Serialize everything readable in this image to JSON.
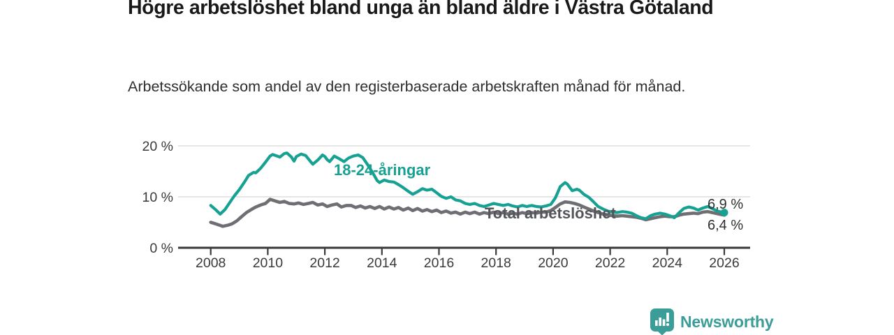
{
  "header": {
    "title": "Högre arbetslöshet bland unga än bland äldre i Västra Götaland",
    "subtitle": "Arbetssökande som andel av den registerbaserade arbetskraften månad för månad."
  },
  "footer": {
    "brand": "Newsworthy",
    "logo_icon": "bar-chart-exclamation-speech-bubble-icon",
    "brand_color": "#3b9d98"
  },
  "colors": {
    "youth_line": "#17a192",
    "total_line": "#6e6f73",
    "total_label": "#53555a",
    "axis": "#3a3a3a",
    "axis_text": "#3a3a3a",
    "gridline": "#d8d8d8",
    "end_label_text": "#2e2e2e"
  },
  "chart_data": {
    "type": "line",
    "title": "Högre arbetslöshet bland unga än bland äldre i Västra Götaland",
    "subtitle": "Arbetssökande som andel av den registerbaserade arbetskraften månad för månad.",
    "xlabel": "",
    "ylabel": "",
    "grid": "horizontal",
    "legend_position": "inline-labels",
    "x_axis": {
      "range": [
        2007.8,
        2026.95
      ],
      "ticks": [
        2008,
        2010,
        2012,
        2014,
        2016,
        2018,
        2020,
        2022,
        2024,
        2026
      ],
      "tick_labels": [
        "2008",
        "2010",
        "2012",
        "2014",
        "2016",
        "2018",
        "2020",
        "2022",
        "2024",
        "2026"
      ]
    },
    "y_axis": {
      "range": [
        0,
        21
      ],
      "ticks": [
        0,
        10,
        20
      ],
      "tick_labels": [
        "0 %",
        "10 %",
        "20 %"
      ]
    },
    "series": [
      {
        "name": "18-24-åringar",
        "color": "#17a192",
        "end_label": "6,9 %",
        "end_value": 6.9,
        "end_dot": true,
        "points": [
          [
            2008.0,
            8.3
          ],
          [
            2008.17,
            7.5
          ],
          [
            2008.33,
            6.6
          ],
          [
            2008.5,
            7.5
          ],
          [
            2008.67,
            8.9
          ],
          [
            2008.83,
            10.2
          ],
          [
            2009.0,
            11.4
          ],
          [
            2009.17,
            12.8
          ],
          [
            2009.33,
            14.2
          ],
          [
            2009.5,
            14.8
          ],
          [
            2009.58,
            14.7
          ],
          [
            2009.75,
            15.6
          ],
          [
            2009.92,
            16.8
          ],
          [
            2010.0,
            17.4
          ],
          [
            2010.08,
            18.0
          ],
          [
            2010.17,
            18.3
          ],
          [
            2010.33,
            18.0
          ],
          [
            2010.42,
            17.8
          ],
          [
            2010.58,
            18.5
          ],
          [
            2010.67,
            18.6
          ],
          [
            2010.83,
            17.8
          ],
          [
            2010.92,
            17.0
          ],
          [
            2011.0,
            17.9
          ],
          [
            2011.17,
            18.4
          ],
          [
            2011.33,
            18.1
          ],
          [
            2011.5,
            16.9
          ],
          [
            2011.58,
            16.4
          ],
          [
            2011.75,
            17.2
          ],
          [
            2011.92,
            18.2
          ],
          [
            2012.0,
            17.9
          ],
          [
            2012.08,
            17.3
          ],
          [
            2012.17,
            16.9
          ],
          [
            2012.33,
            18.0
          ],
          [
            2012.5,
            17.5
          ],
          [
            2012.67,
            16.9
          ],
          [
            2012.83,
            17.6
          ],
          [
            2013.0,
            18.0
          ],
          [
            2013.17,
            18.2
          ],
          [
            2013.33,
            17.7
          ],
          [
            2013.5,
            16.3
          ],
          [
            2013.67,
            14.8
          ],
          [
            2013.83,
            13.2
          ],
          [
            2013.92,
            12.8
          ],
          [
            2014.08,
            13.3
          ],
          [
            2014.25,
            13.0
          ],
          [
            2014.42,
            12.9
          ],
          [
            2014.58,
            12.4
          ],
          [
            2014.75,
            11.8
          ],
          [
            2014.92,
            11.1
          ],
          [
            2015.08,
            10.5
          ],
          [
            2015.25,
            11.0
          ],
          [
            2015.42,
            11.6
          ],
          [
            2015.58,
            11.3
          ],
          [
            2015.75,
            11.5
          ],
          [
            2015.92,
            10.8
          ],
          [
            2016.08,
            10.1
          ],
          [
            2016.25,
            9.7
          ],
          [
            2016.42,
            10.0
          ],
          [
            2016.58,
            9.4
          ],
          [
            2016.75,
            9.2
          ],
          [
            2016.92,
            8.7
          ],
          [
            2017.08,
            8.5
          ],
          [
            2017.25,
            8.7
          ],
          [
            2017.42,
            8.3
          ],
          [
            2017.58,
            8.1
          ],
          [
            2017.75,
            8.4
          ],
          [
            2017.92,
            8.7
          ],
          [
            2018.08,
            8.5
          ],
          [
            2018.25,
            8.3
          ],
          [
            2018.42,
            8.5
          ],
          [
            2018.58,
            8.2
          ],
          [
            2018.75,
            8.0
          ],
          [
            2018.92,
            8.3
          ],
          [
            2019.08,
            8.1
          ],
          [
            2019.25,
            8.3
          ],
          [
            2019.42,
            8.1
          ],
          [
            2019.58,
            8.0
          ],
          [
            2019.75,
            8.2
          ],
          [
            2019.92,
            8.5
          ],
          [
            2020.08,
            9.8
          ],
          [
            2020.25,
            12.0
          ],
          [
            2020.42,
            12.8
          ],
          [
            2020.5,
            12.5
          ],
          [
            2020.67,
            11.2
          ],
          [
            2020.83,
            11.5
          ],
          [
            2020.92,
            11.3
          ],
          [
            2021.08,
            10.5
          ],
          [
            2021.25,
            9.9
          ],
          [
            2021.42,
            9.0
          ],
          [
            2021.58,
            8.1
          ],
          [
            2021.75,
            7.6
          ],
          [
            2021.92,
            7.2
          ],
          [
            2022.08,
            7.0
          ],
          [
            2022.25,
            6.9
          ],
          [
            2022.42,
            7.1
          ],
          [
            2022.58,
            7.0
          ],
          [
            2022.75,
            6.8
          ],
          [
            2022.92,
            6.3
          ],
          [
            2023.08,
            5.9
          ],
          [
            2023.25,
            5.7
          ],
          [
            2023.42,
            6.3
          ],
          [
            2023.58,
            6.6
          ],
          [
            2023.75,
            6.8
          ],
          [
            2023.92,
            6.6
          ],
          [
            2024.08,
            6.3
          ],
          [
            2024.25,
            5.9
          ],
          [
            2024.42,
            6.9
          ],
          [
            2024.58,
            7.7
          ],
          [
            2024.75,
            8.0
          ],
          [
            2024.92,
            7.8
          ],
          [
            2025.08,
            7.4
          ],
          [
            2025.25,
            7.8
          ],
          [
            2025.42,
            8.1
          ],
          [
            2025.58,
            7.7
          ],
          [
            2025.75,
            7.2
          ],
          [
            2025.92,
            7.0
          ],
          [
            2026.0,
            6.9
          ]
        ]
      },
      {
        "name": "Total arbetslöshet",
        "color": "#6e6f73",
        "end_label": "6,4 %",
        "end_value": 6.4,
        "end_dot": false,
        "points": [
          [
            2008.0,
            5.0
          ],
          [
            2008.17,
            4.7
          ],
          [
            2008.33,
            4.4
          ],
          [
            2008.42,
            4.2
          ],
          [
            2008.58,
            4.4
          ],
          [
            2008.75,
            4.7
          ],
          [
            2008.92,
            5.3
          ],
          [
            2009.08,
            6.1
          ],
          [
            2009.25,
            6.9
          ],
          [
            2009.42,
            7.5
          ],
          [
            2009.58,
            8.0
          ],
          [
            2009.75,
            8.4
          ],
          [
            2009.92,
            8.7
          ],
          [
            2010.08,
            9.5
          ],
          [
            2010.25,
            9.2
          ],
          [
            2010.42,
            8.9
          ],
          [
            2010.58,
            9.1
          ],
          [
            2010.75,
            8.7
          ],
          [
            2010.92,
            8.6
          ],
          [
            2011.08,
            8.8
          ],
          [
            2011.25,
            8.5
          ],
          [
            2011.42,
            8.7
          ],
          [
            2011.58,
            8.9
          ],
          [
            2011.75,
            8.4
          ],
          [
            2011.92,
            8.6
          ],
          [
            2012.08,
            8.1
          ],
          [
            2012.25,
            8.4
          ],
          [
            2012.42,
            8.6
          ],
          [
            2012.58,
            8.0
          ],
          [
            2012.75,
            8.3
          ],
          [
            2012.92,
            8.3
          ],
          [
            2013.08,
            7.9
          ],
          [
            2013.25,
            8.2
          ],
          [
            2013.42,
            7.8
          ],
          [
            2013.58,
            8.1
          ],
          [
            2013.75,
            7.7
          ],
          [
            2013.92,
            8.1
          ],
          [
            2014.08,
            7.6
          ],
          [
            2014.25,
            8.0
          ],
          [
            2014.42,
            7.6
          ],
          [
            2014.58,
            7.9
          ],
          [
            2014.75,
            7.4
          ],
          [
            2014.92,
            7.8
          ],
          [
            2015.08,
            7.3
          ],
          [
            2015.25,
            7.7
          ],
          [
            2015.42,
            7.2
          ],
          [
            2015.58,
            7.5
          ],
          [
            2015.75,
            7.1
          ],
          [
            2015.92,
            7.4
          ],
          [
            2016.08,
            6.9
          ],
          [
            2016.25,
            7.2
          ],
          [
            2016.42,
            6.8
          ],
          [
            2016.58,
            7.0
          ],
          [
            2016.75,
            6.6
          ],
          [
            2016.92,
            7.0
          ],
          [
            2017.08,
            6.7
          ],
          [
            2017.25,
            7.0
          ],
          [
            2017.42,
            6.6
          ],
          [
            2017.58,
            6.9
          ],
          [
            2017.75,
            6.7
          ],
          [
            2017.92,
            7.0
          ],
          [
            2018.08,
            6.7
          ],
          [
            2018.25,
            6.9
          ],
          [
            2018.42,
            6.6
          ],
          [
            2018.58,
            6.8
          ],
          [
            2018.75,
            6.6
          ],
          [
            2018.92,
            6.9
          ],
          [
            2019.08,
            6.7
          ],
          [
            2019.25,
            6.9
          ],
          [
            2019.42,
            6.8
          ],
          [
            2019.58,
            7.0
          ],
          [
            2019.75,
            7.0
          ],
          [
            2019.92,
            7.3
          ],
          [
            2020.08,
            7.9
          ],
          [
            2020.25,
            8.6
          ],
          [
            2020.42,
            9.0
          ],
          [
            2020.58,
            8.9
          ],
          [
            2020.75,
            8.7
          ],
          [
            2020.92,
            8.4
          ],
          [
            2021.08,
            8.0
          ],
          [
            2021.25,
            7.6
          ],
          [
            2021.42,
            7.2
          ],
          [
            2021.58,
            6.9
          ],
          [
            2021.75,
            6.6
          ],
          [
            2021.92,
            6.4
          ],
          [
            2022.08,
            6.3
          ],
          [
            2022.25,
            6.2
          ],
          [
            2022.42,
            6.3
          ],
          [
            2022.58,
            6.2
          ],
          [
            2022.75,
            6.1
          ],
          [
            2022.92,
            6.0
          ],
          [
            2023.08,
            5.8
          ],
          [
            2023.25,
            5.5
          ],
          [
            2023.42,
            5.7
          ],
          [
            2023.58,
            5.9
          ],
          [
            2023.75,
            6.1
          ],
          [
            2023.92,
            6.2
          ],
          [
            2024.08,
            6.1
          ],
          [
            2024.25,
            6.1
          ],
          [
            2024.42,
            6.4
          ],
          [
            2024.58,
            6.6
          ],
          [
            2024.75,
            6.7
          ],
          [
            2024.92,
            6.8
          ],
          [
            2025.08,
            6.7
          ],
          [
            2025.25,
            7.0
          ],
          [
            2025.42,
            7.1
          ],
          [
            2025.58,
            6.9
          ],
          [
            2025.75,
            6.7
          ],
          [
            2025.92,
            6.5
          ],
          [
            2026.0,
            6.4
          ]
        ]
      }
    ]
  }
}
